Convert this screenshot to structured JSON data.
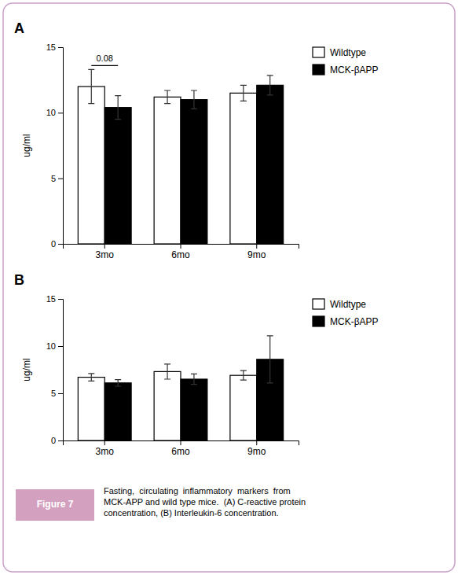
{
  "chart_data": [
    {
      "type": "bar",
      "title": "A",
      "categories": [
        "3mo",
        "6mo",
        "9mo"
      ],
      "series": [
        {
          "name": "Wildtype",
          "color": "#ffffff",
          "values": [
            12.0,
            11.2,
            11.5
          ],
          "errors": [
            1.3,
            0.5,
            0.6
          ]
        },
        {
          "name": "MCK-βAPP",
          "color": "#000000",
          "values": [
            10.4,
            11.0,
            12.1
          ],
          "errors": [
            0.9,
            0.7,
            0.75
          ]
        }
      ],
      "ylabel": "ug/ml",
      "ylim": [
        0,
        15
      ],
      "yticks": [
        0,
        5,
        10,
        15
      ],
      "grid": false,
      "legend": "right",
      "annotations": [
        {
          "text": "0.08",
          "x": "3mo",
          "y": 13.6
        }
      ]
    },
    {
      "type": "bar",
      "title": "B",
      "categories": [
        "3mo",
        "6mo",
        "9mo"
      ],
      "series": [
        {
          "name": "Wildtype",
          "color": "#ffffff",
          "values": [
            6.7,
            7.3,
            6.9
          ],
          "errors": [
            0.4,
            0.8,
            0.5
          ]
        },
        {
          "name": "MCK-βAPP",
          "color": "#000000",
          "values": [
            6.1,
            6.5,
            8.6
          ],
          "errors": [
            0.35,
            0.55,
            2.5
          ]
        }
      ],
      "ylabel": "ug/ml",
      "ylim": [
        0,
        15
      ],
      "yticks": [
        0,
        5,
        10,
        15
      ],
      "grid": false,
      "legend": "right",
      "annotations": [
        {
          "text": "Figure 7"
        },
        {
          "text": "Fasting,  circulating  inflammatory  markers  from\nMCK-APP and wild type mice.  (A) C-reactive protein\nconcentration, (B) Interleukin-6 concentration."
        }
      ]
    }
  ]
}
